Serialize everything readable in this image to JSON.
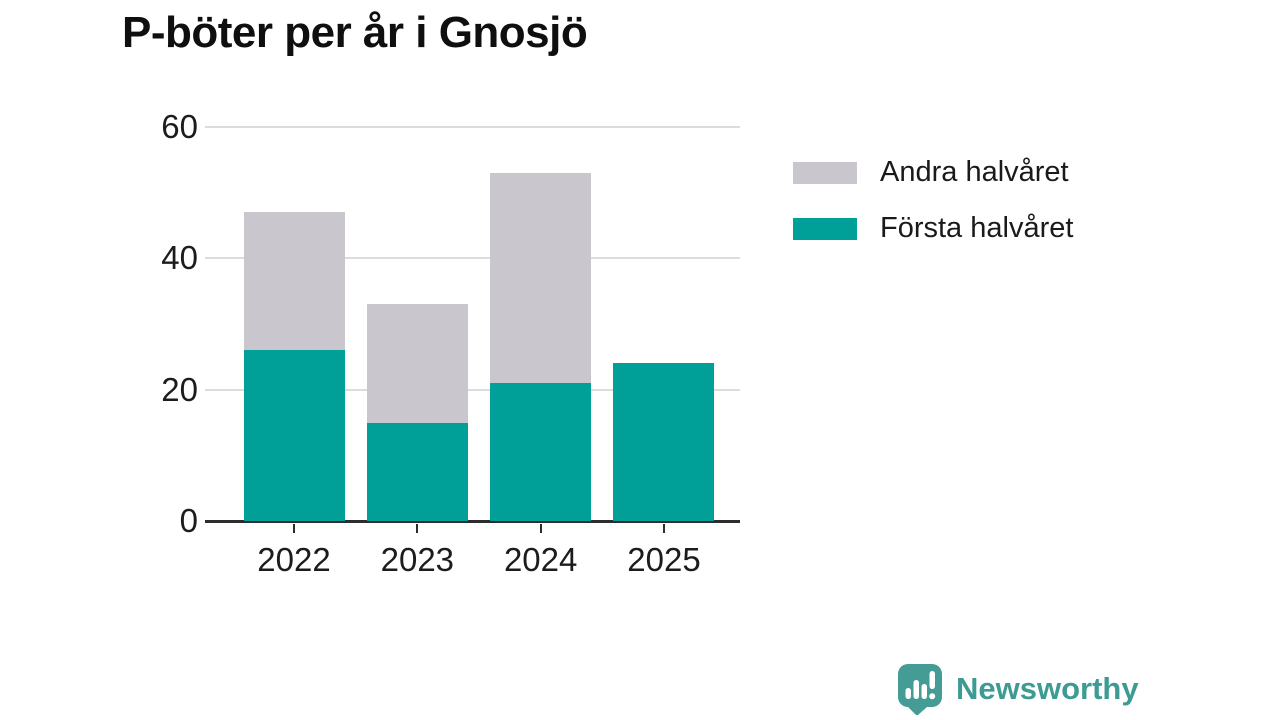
{
  "title": "P-böter per år i Gnosjö",
  "colors": {
    "first_half": "#00a099",
    "second_half": "#c9c6ce",
    "gridline": "#dcdcdc",
    "axis": "#2d2d2d",
    "logo_teal": "#459c95",
    "brand_text_teal": "#3d9b94"
  },
  "chart_data": {
    "type": "bar",
    "stacked": true,
    "title": "P-böter per år i Gnosjö",
    "categories": [
      "2022",
      "2023",
      "2024",
      "2025"
    ],
    "series": [
      {
        "name": "Första halvåret",
        "key": "forsta-halvaret",
        "color": "#00a099",
        "values": [
          26,
          15,
          21,
          24
        ]
      },
      {
        "name": "Andra halvåret",
        "key": "andra-halvaret",
        "color": "#c9c6ce",
        "values": [
          21,
          18,
          32,
          0
        ]
      }
    ],
    "totals": [
      47,
      33,
      53,
      24
    ],
    "xlabel": "",
    "ylabel": "",
    "ylim": [
      0,
      60
    ],
    "yticks": [
      0,
      20,
      40,
      60
    ],
    "grid": true,
    "legend_position": "right"
  },
  "legend": {
    "items": [
      {
        "label": "Andra halvåret",
        "color": "#c9c6ce"
      },
      {
        "label": "Första halvåret",
        "color": "#00a099"
      }
    ]
  },
  "footer": {
    "brand": "Newsworthy"
  }
}
